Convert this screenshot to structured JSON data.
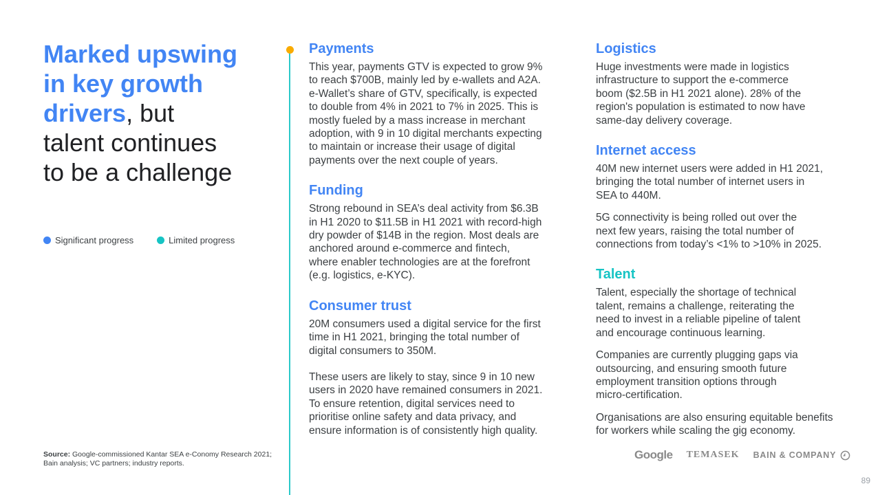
{
  "title": {
    "highlight": "Marked upswing\nin key growth\ndrivers",
    "rest": ", but\ntalent continues\nto be a challenge"
  },
  "legend": [
    {
      "label": "Significant progress",
      "color": "#4285f4"
    },
    {
      "label": "Limited progress",
      "color": "#16c4c4"
    }
  ],
  "source": {
    "label": "Source:",
    "text": " Google-commissioned Kantar SEA e-Conomy Research 2021;\nBain analysis; VC partners; industry reports."
  },
  "colors": {
    "accent_blue": "#4285f4",
    "accent_teal": "#16c4c4",
    "timeline_dot": "#f9ab00"
  },
  "sections_left": [
    {
      "heading": "Payments",
      "paragraphs": [
        "This year, payments GTV is expected to grow 9%\nto reach $700B, mainly led by e-wallets and A2A.\ne-Wallet’s share of GTV, specifically, is expected\nto double from 4% in 2021 to 7% in 2025. This is\nmostly fueled by a mass increase in merchant\nadoption, with 9 in 10 digital merchants expecting\nto maintain or increase their usage of digital\npayments over the next couple of years."
      ]
    },
    {
      "heading": "Funding",
      "paragraphs": [
        "Strong rebound in SEA’s deal activity from $6.3B\nin H1 2020 to $11.5B in H1 2021 with record-high\ndry powder of $14B in the region. Most deals are\nanchored around e-commerce and fintech,\nwhere enabler technologies are at the forefront\n(e.g. logistics, e-KYC)."
      ]
    },
    {
      "heading": "Consumer trust",
      "paragraphs": [
        "20M consumers used a digital service for the first\ntime in H1 2021, bringing the total number of\ndigital consumers to 350M.",
        "These users are likely to stay, since 9 in 10 new\nusers in 2020 have remained consumers in 2021.\nTo ensure retention, digital services need to\nprioritise online safety and data privacy, and\nensure information is of consistently high quality."
      ]
    }
  ],
  "sections_right": [
    {
      "heading": "Logistics",
      "paragraphs": [
        "Huge investments were made in logistics\ninfrastructure to support the e-commerce\nboom ($2.5B in H1 2021 alone). 28% of the\nregion's population is estimated to now have\nsame-day delivery coverage."
      ]
    },
    {
      "heading": "Internet access",
      "paragraphs": [
        "40M new internet users were added in H1 2021,\nbringing the total number of internet users in\nSEA to 440M.",
        "5G connectivity is being rolled out over the\nnext few years, raising the total number of\nconnections from today’s <1% to >10% in 2025."
      ]
    },
    {
      "heading": "Talent",
      "paragraphs": [
        "Talent, especially the shortage of technical\ntalent, remains a challenge, reiterating the\nneed to invest in a reliable pipeline of talent\nand encourage continuous learning.",
        "Companies are currently plugging gaps via\noutsourcing, and ensuring smooth future\nemployment transition options through\nmicro-certification.",
        "Organisations are also ensuring equitable benefits\nfor workers while scaling the gig economy."
      ]
    }
  ],
  "logos": [
    "Google",
    "TEMASEK",
    "BAIN & COMPANY"
  ],
  "page_number": "89"
}
